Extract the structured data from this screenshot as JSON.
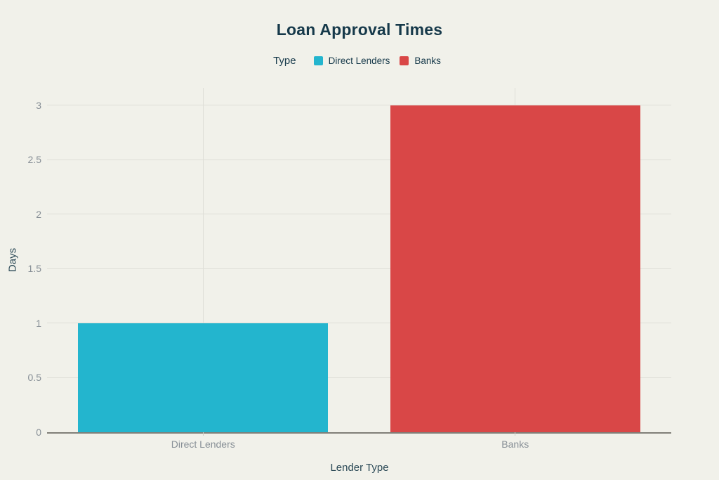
{
  "chart_data": {
    "type": "bar",
    "title": "Loan Approval Times",
    "xlabel": "Lender Type",
    "ylabel": "Days",
    "legend_title": "Type",
    "legend_position": "top-center",
    "categories": [
      "Direct Lenders",
      "Banks"
    ],
    "values": [
      1,
      3
    ],
    "colors": [
      "#23B5CE",
      "#D94747"
    ],
    "yticks": [
      0,
      0.5,
      1,
      1.5,
      2,
      2.5,
      3
    ],
    "ylim": [
      0,
      3.16
    ],
    "grid": true,
    "bar_width_fraction": 0.8,
    "background_color": "#F1F1EA",
    "title_color": "#16394A",
    "axis_title_color": "#2C4A57",
    "tick_label_color": "#878F96",
    "gridline_color": "#DEDED7",
    "axis_line_color": "#807F78"
  }
}
